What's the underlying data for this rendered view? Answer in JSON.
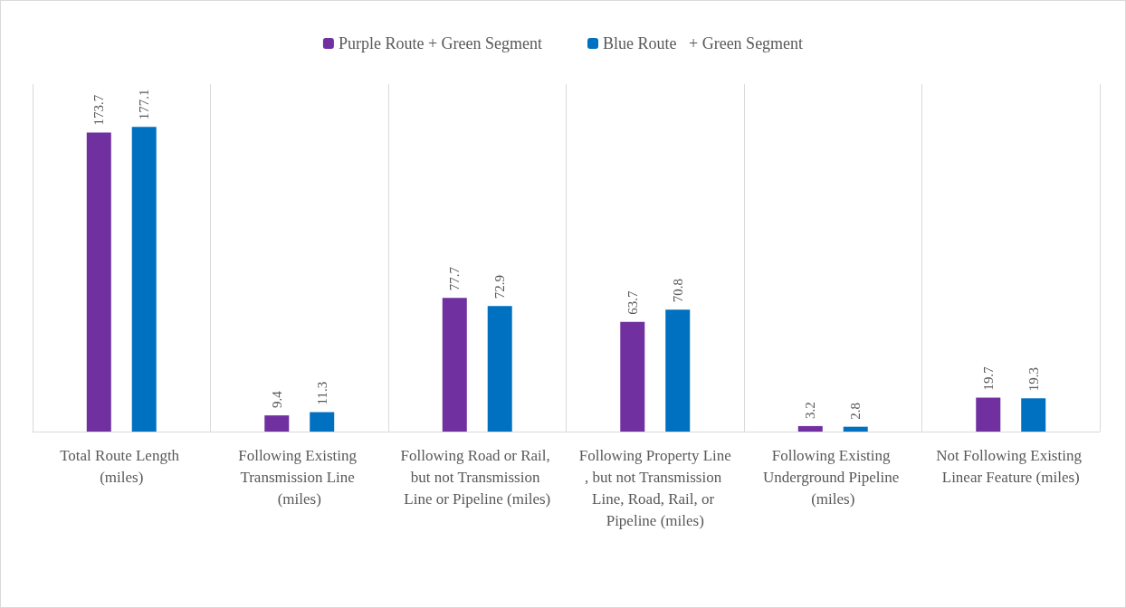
{
  "chart_data": {
    "type": "bar",
    "categories": [
      "Total Route Length (miles)",
      "Following Existing Transmission Line (miles)",
      "Following Road or Rail, but not Transmission Line or Pipeline (miles)",
      "Following Property Line, but not Transmission Line, Road, Rail, or Pipeline (miles)",
      "Following Existing Underground Pipeline (miles)",
      "Not Following Existing Linear Feature (miles)"
    ],
    "series": [
      {
        "name": "Purple Route + Green Segment",
        "color": "#7030a0",
        "values": [
          173.7,
          9.4,
          77.7,
          63.7,
          3.2,
          19.7
        ]
      },
      {
        "name": "Blue Route   + Green Segment",
        "color": "#0070c0",
        "values": [
          177.1,
          11.3,
          72.9,
          70.8,
          2.8,
          19.3
        ]
      }
    ],
    "data_labels": true,
    "grid": "x",
    "legend": "top",
    "tick_labels": "x"
  }
}
